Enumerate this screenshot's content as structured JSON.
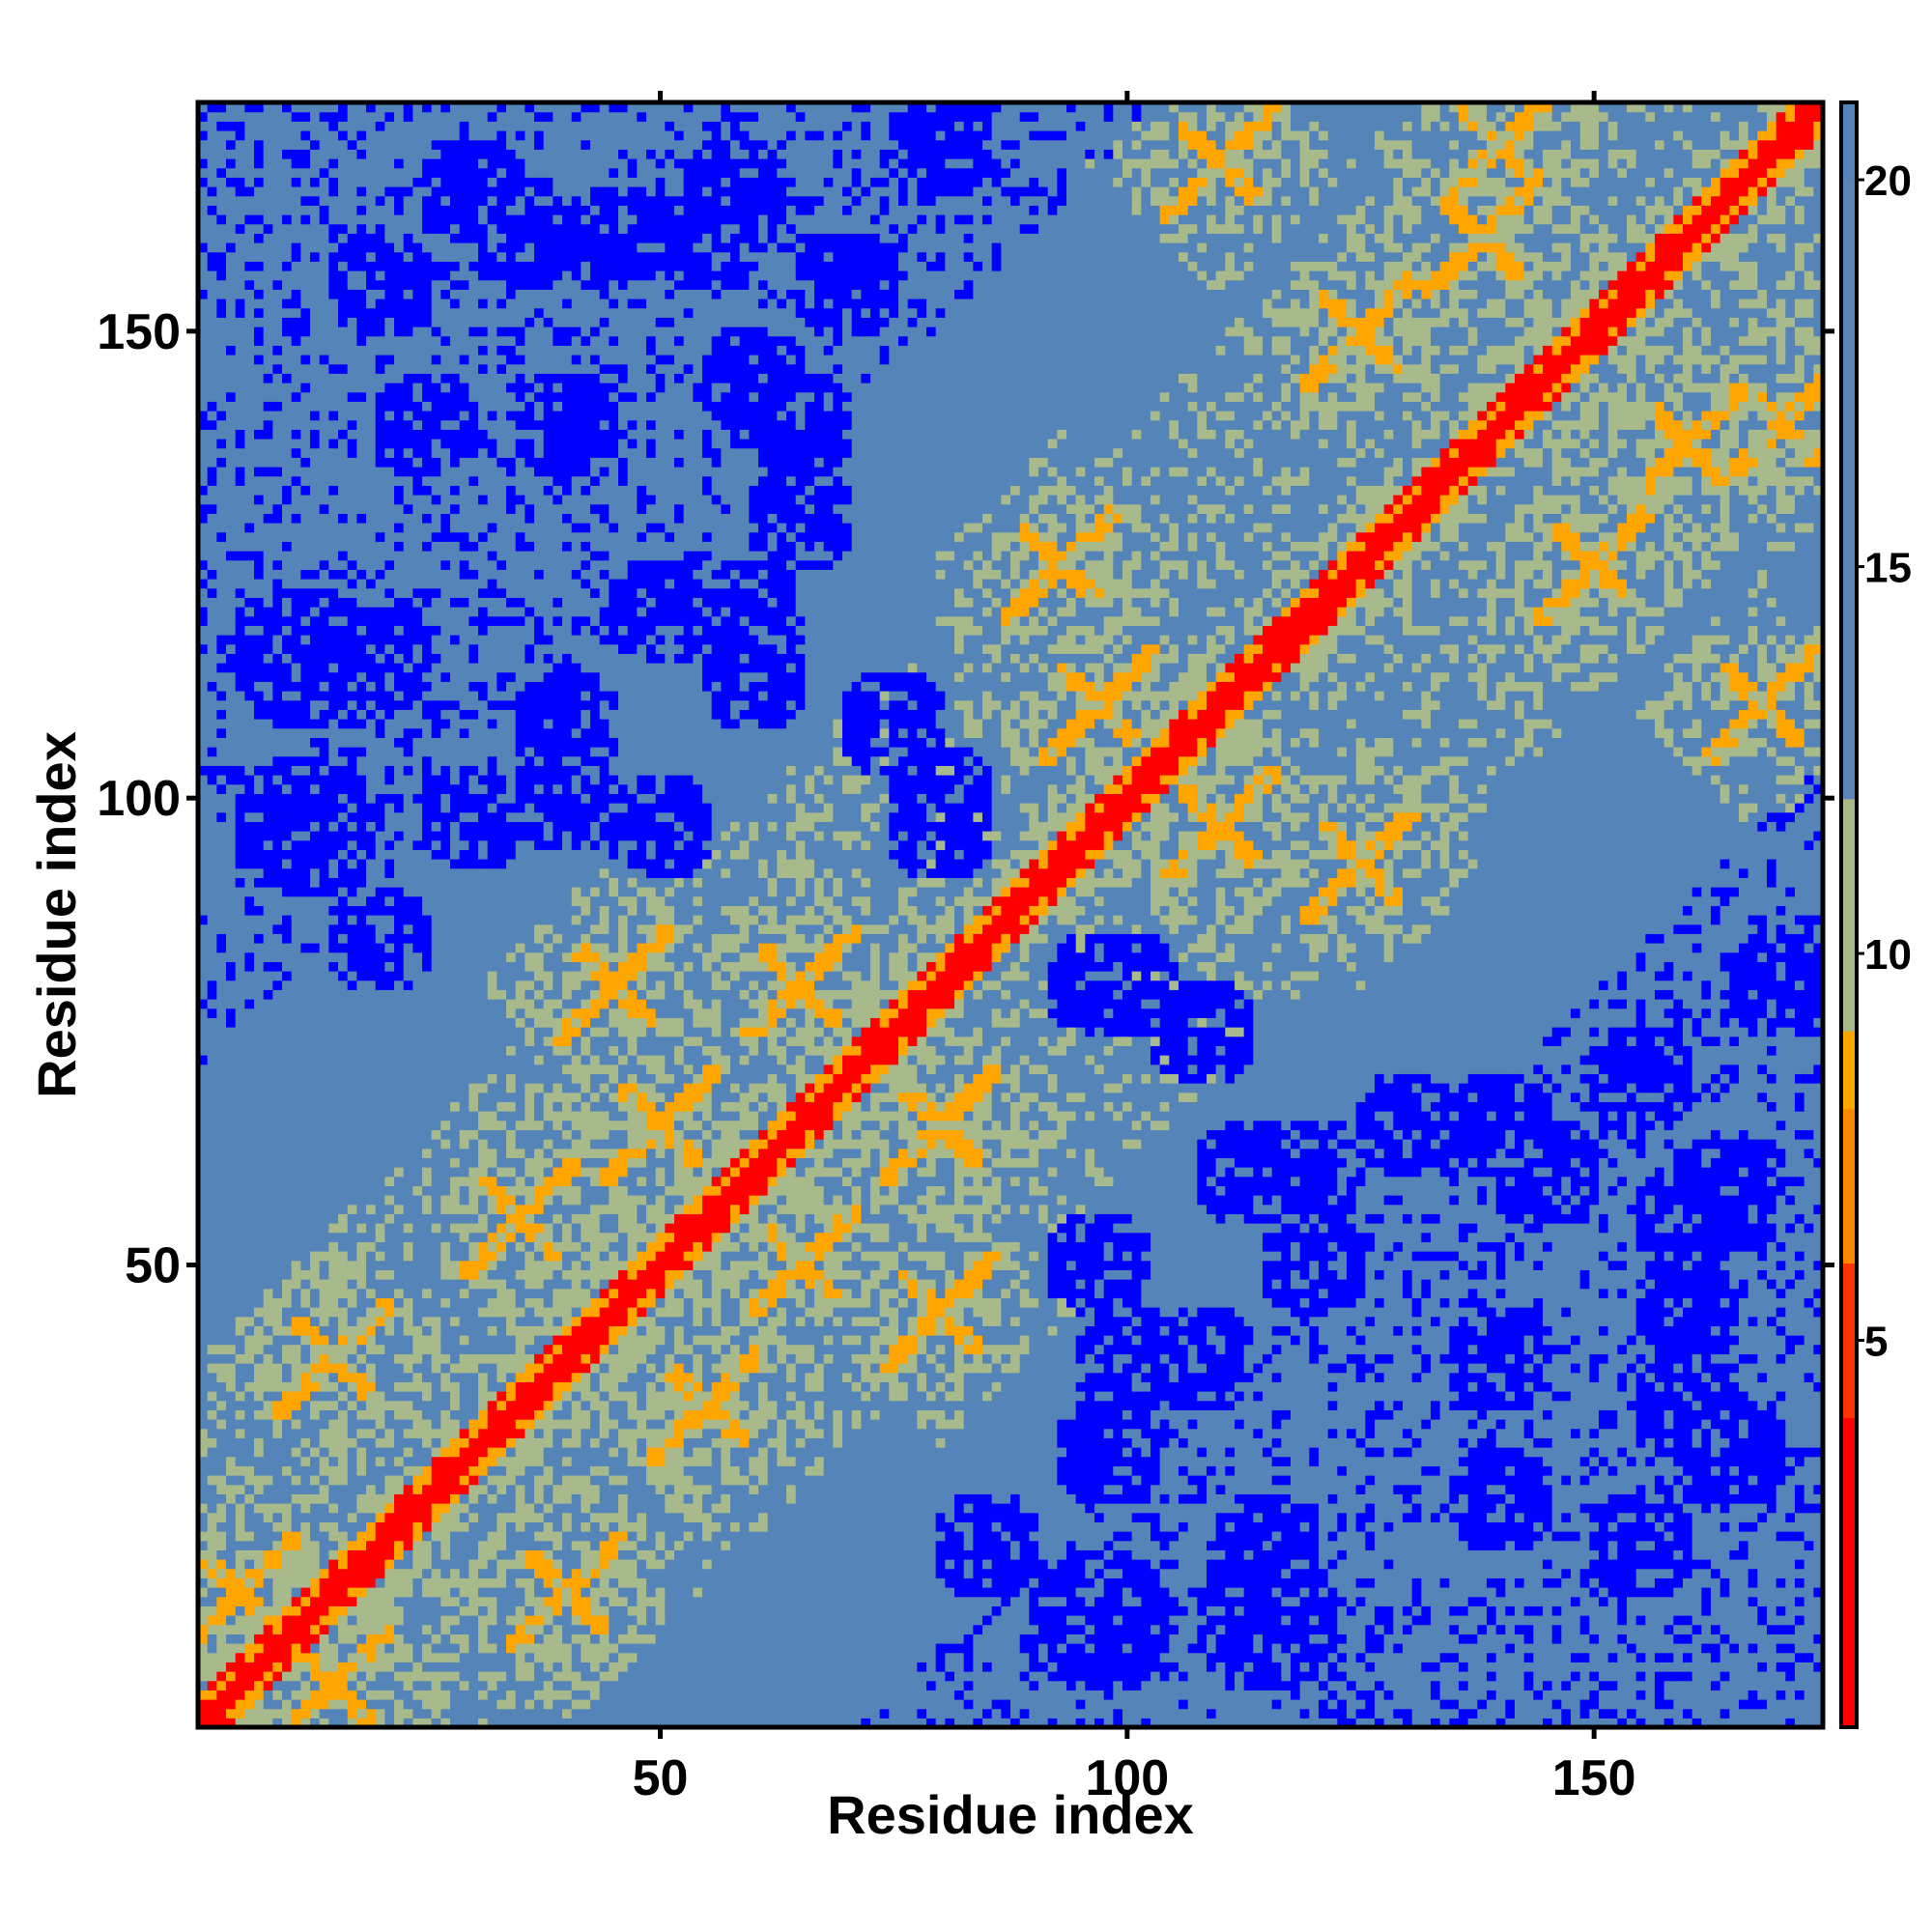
{
  "chart_data": {
    "type": "heatmap",
    "title": "",
    "xlabel": "Residue index",
    "ylabel": "Residue index",
    "n_residues": 174,
    "x_range": [
      1,
      174
    ],
    "y_range": [
      1,
      174
    ],
    "x_ticks": [
      50,
      100,
      150
    ],
    "x_tick_labels": [
      "50",
      "100",
      "150"
    ],
    "y_ticks": [
      50,
      100,
      150
    ],
    "y_tick_labels": [
      "50",
      "100",
      "150"
    ],
    "colorbar": {
      "range": [
        0,
        21
      ],
      "ticks": [
        5,
        10,
        15,
        20
      ],
      "tick_labels": [
        "5",
        "10",
        "15",
        "20"
      ],
      "colors": [
        {
          "value": 0,
          "color": "#ff0000"
        },
        {
          "value": 4,
          "color": "#ff3300"
        },
        {
          "value": 6,
          "color": "#ff8800"
        },
        {
          "value": 8,
          "color": "#ffa500"
        },
        {
          "value": 9,
          "color": "#a8b98c"
        },
        {
          "value": 12,
          "color": "#5b84b8"
        },
        {
          "value": 20,
          "color": "#5585b8"
        },
        {
          "value": 21,
          "color": "#0000ff"
        }
      ]
    },
    "upper_triangle_colors": {
      "background": "#5585b8",
      "far": "#0000ff",
      "near": "#a8b98c",
      "contact": "#ffa500",
      "diagonal": "#ff0000"
    },
    "far_region_centers": [
      [
        20,
        155
      ],
      [
        35,
        160
      ],
      [
        55,
        160
      ],
      [
        70,
        155
      ],
      [
        40,
        140
      ],
      [
        65,
        140
      ],
      [
        12,
        115
      ],
      [
        40,
        108
      ],
      [
        60,
        113
      ],
      [
        75,
        108
      ],
      [
        12,
        97
      ],
      [
        30,
        98
      ],
      [
        50,
        97
      ],
      [
        80,
        97
      ],
      [
        20,
        85
      ],
      [
        60,
        120
      ],
      [
        100,
        80
      ],
      [
        130,
        65
      ],
      [
        145,
        60
      ],
      [
        165,
        58
      ],
      [
        160,
        45
      ],
      [
        140,
        25
      ],
      [
        115,
        20
      ],
      [
        100,
        40
      ],
      [
        170,
        80
      ],
      [
        155,
        70
      ],
      [
        120,
        50
      ],
      [
        165,
        30
      ]
    ],
    "contact_features": [
      {
        "residue_i": 5,
        "residue_j": 15
      },
      {
        "residue_i": 15,
        "residue_j": 40
      },
      {
        "residue_i": 35,
        "residue_j": 55
      },
      {
        "residue_i": 50,
        "residue_j": 65
      },
      {
        "residue_i": 45,
        "residue_j": 80
      },
      {
        "residue_i": 65,
        "residue_j": 80
      },
      {
        "residue_i": 97,
        "residue_j": 110
      },
      {
        "residue_i": 93,
        "residue_j": 125
      },
      {
        "residue_i": 110,
        "residue_j": 168
      },
      {
        "residue_i": 125,
        "residue_j": 150
      },
      {
        "residue_i": 138,
        "residue_j": 160
      },
      {
        "residue_i": 140,
        "residue_j": 170
      }
    ]
  }
}
